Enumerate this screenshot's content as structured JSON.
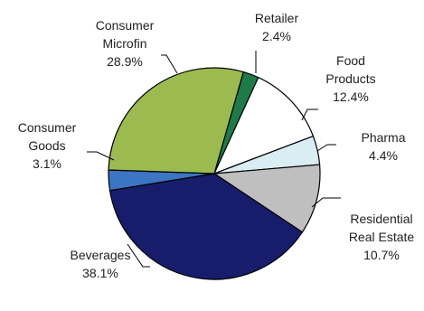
{
  "chart_data": {
    "type": "pie",
    "slices": [
      {
        "label": [
          "Retailer"
        ],
        "value": 2.4,
        "value_label": "2.4%",
        "color": "#1f7a4a"
      },
      {
        "label": [
          "Food",
          "Products"
        ],
        "value": 12.4,
        "value_label": "12.4%",
        "color": "#ffffff"
      },
      {
        "label": [
          "Pharma"
        ],
        "value": 4.4,
        "value_label": "4.4%",
        "color": "#d9edf3"
      },
      {
        "label": [
          "Residential",
          "Real Estate"
        ],
        "value": 10.7,
        "value_label": "10.7%",
        "color": "#bfbfbf"
      },
      {
        "label": [
          "Beverages"
        ],
        "value": 38.1,
        "value_label": "38.1%",
        "color": "#171d6b"
      },
      {
        "label": [
          "Consumer",
          "Goods"
        ],
        "value": 3.1,
        "value_label": "3.1%",
        "color": "#3b75c4"
      },
      {
        "label": [
          "Consumer",
          "Microfin"
        ],
        "value": 28.9,
        "value_label": "28.9%",
        "color": "#9bbb50"
      }
    ],
    "start_angle_deg": 16,
    "direction": "clockwise",
    "title": "",
    "legend": "none"
  }
}
